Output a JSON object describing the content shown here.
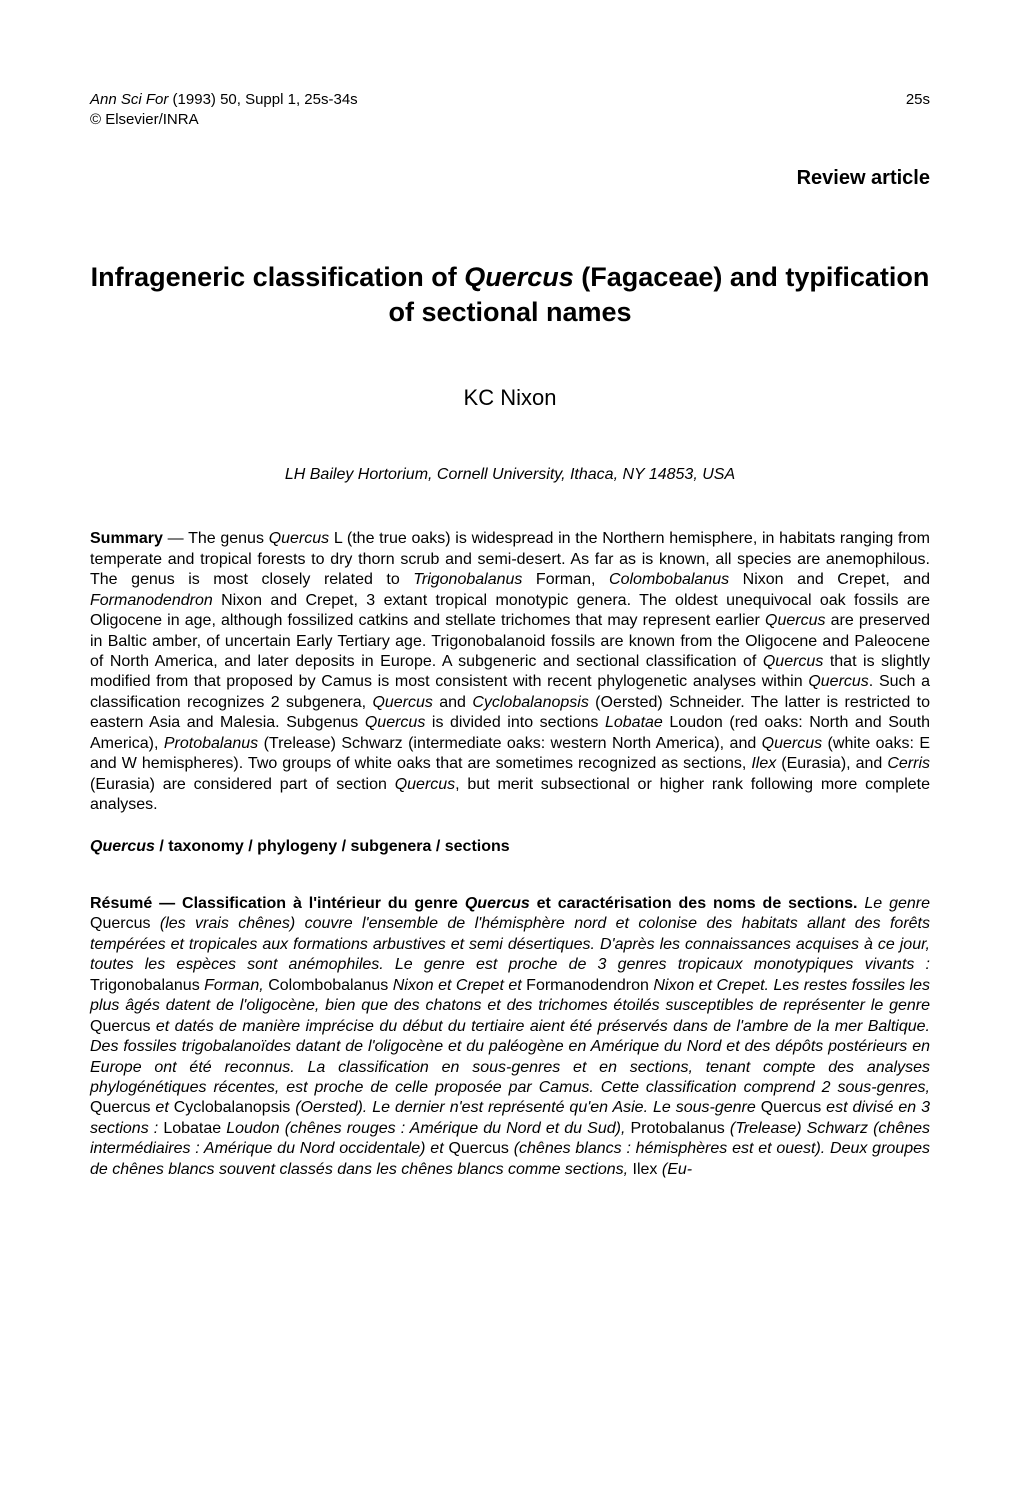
{
  "header": {
    "journal": "Ann Sci For",
    "citation": " (1993) 50, Suppl 1, 25s-34s",
    "copyright": "© Elsevier/INRA",
    "page_number": "25s"
  },
  "article_type": "Review article",
  "title": {
    "pre": "Infrageneric classification of ",
    "genus": "Quercus",
    "post": " (Fagaceae) and typification of sectional names"
  },
  "author": "KC Nixon",
  "affiliation": "LH Bailey Hortorium, Cornell University, Ithaca, NY 14853, USA",
  "summary": {
    "label": "Summary",
    "dash": " — ",
    "s1a": "The genus ",
    "s1b": "Quercus",
    "s1c": " L (the true oaks) is widespread in the Northern hemisphere, in habitats ranging from temperate and tropical forests to dry thorn scrub and semi-desert. As far as is known, all species are anemophilous. The genus is most closely related to ",
    "s1d": "Trigonobalanus",
    "s1e": " Forman, ",
    "s1f": "Colombobalanus",
    "s1g": " Nixon and Crepet, and ",
    "s1h": "Formanodendron",
    "s1i": " Nixon and Crepet, 3 extant tropical monotypic genera. The oldest unequivocal oak fossils are Oligocene in age, although fossilized catkins and stellate trichomes that may represent earlier ",
    "s1j": "Quercus",
    "s1k": " are preserved in Baltic amber, of uncertain Early Tertiary age. Trigonobalanoid fossils are known from the Oligocene and Paleocene of North America, and later deposits in Europe. A subgeneric and sectional classification of ",
    "s1l": "Quercus",
    "s1m": " that is slightly modified from that proposed by Camus is most consistent with recent phylogenetic analyses within ",
    "s1n": "Quercus",
    "s1o": ". Such a classification recognizes 2 subgenera, ",
    "s1p": "Quercus",
    "s1q": " and ",
    "s1r": "Cyclobalanopsis",
    "s1s": " (Oersted) Schneider. The latter is restricted to eastern Asia and Malesia. Subgenus ",
    "s1t": "Quercus",
    "s1u": " is divided into sections ",
    "s1v": "Lobatae",
    "s1w": " Loudon (red oaks: North and South America), ",
    "s1x": "Protobalanus",
    "s1y": " (Trelease) Schwarz (intermediate oaks: western North America), and ",
    "s1z": "Quercus",
    "s2a": " (white oaks: E and W hemispheres). Two groups of white oaks that are sometimes recognized as sections, ",
    "s2b": "Ilex",
    "s2c": " (Eurasia), and ",
    "s2d": "Cerris",
    "s2e": " (Eurasia) are considered part of section ",
    "s2f": "Quercus",
    "s2g": ", but merit subsectional or higher rank following more complete analyses."
  },
  "keywords": {
    "lead": "Quercus",
    "rest": " / taxonomy / phylogeny / subgenera / sections"
  },
  "resume": {
    "label": "Résumé — Classification à l'intérieur du genre ",
    "genus": "Quercus",
    "label2": " et caractérisation des noms de sections.",
    "r1a": " Le genre ",
    "r1b": "Quercus",
    "r1c": " (les vrais chênes) couvre l'ensemble de l'hémisphère nord et colonise des habitats allant des forêts tempérées et tropicales aux formations arbustives et semi désertiques. D'après les connaissances acquises à ce jour, toutes les espèces sont anémophiles. Le genre est proche de 3 genres tropicaux monotypiques vivants : ",
    "r1d": "Trigonobalanus",
    "r1e": " Forman, ",
    "r1f": "Colombobalanus",
    "r1g": " Nixon et Crepet et ",
    "r1h": "Formanodendron",
    "r1i": " Nixon et Crepet. Les restes fossiles les plus âgés datent de l'oligocène, bien que des chatons et des trichomes étoilés susceptibles de représenter le genre ",
    "r1j": "Quercus",
    "r1k": " et datés de manière imprécise du début du tertiaire aient été préservés dans de l'ambre de la mer Baltique. Des fossiles trigobalanoïdes datant de l'oligocène et du paléogène en Amérique du Nord et des dépôts postérieurs en Europe ont été reconnus. La classification en sous-genres et en sections, tenant compte des analyses phylogénétiques récentes, est proche de celle proposée par Camus. Cette classification comprend 2 sous-genres, ",
    "r1l": "Quercus",
    "r1m": " et ",
    "r1n": "Cyclobalanopsis",
    "r1o": " (Oersted). Le dernier n'est représenté qu'en Asie. Le sous-genre ",
    "r1p": "Quercus",
    "r1q": " est divisé en 3 sections : ",
    "r1r": "Lobatae",
    "r1s": " Loudon (chênes rouges : Amérique du Nord et du Sud), ",
    "r1t": "Protobalanus",
    "r1u": " (Trelease) Schwarz (chênes intermédiaires : Amérique du Nord occidentale) et ",
    "r1v": "Quercus",
    "r1w": " (chênes blancs : hémisphères est et ouest). Deux groupes de chênes blancs souvent classés dans les chênes blancs comme sections, ",
    "r1x": "Ilex",
    "r1y": " (Eu-"
  },
  "style": {
    "background_color": "#ffffff",
    "text_color": "#000000",
    "body_fontsize_pt": 12,
    "title_fontsize_pt": 20,
    "author_fontsize_pt": 16,
    "font_family": "Arial, Helvetica, sans-serif"
  }
}
